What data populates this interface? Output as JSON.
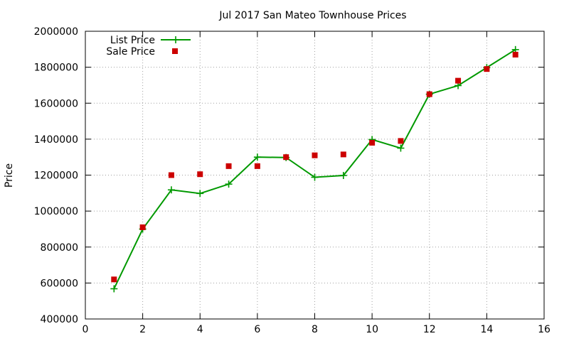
{
  "chart_data": {
    "type": "line",
    "title": "Jul 2017 San Mateo Townhouse Prices",
    "xlabel": "",
    "ylabel": "Price",
    "xlim": [
      0,
      16
    ],
    "ylim": [
      400000,
      2000000
    ],
    "x_ticks": [
      "0",
      "2",
      "4",
      "6",
      "8",
      "10",
      "12",
      "14",
      "16"
    ],
    "y_ticks": [
      "400000",
      "600000",
      "800000",
      "1000000",
      "1200000",
      "1400000",
      "1600000",
      "1800000",
      "2000000"
    ],
    "grid": true,
    "legend_position": "top-left",
    "series": [
      {
        "name": "List Price",
        "type": "line",
        "color": "#009900",
        "marker": "plus",
        "x": [
          1,
          2,
          3,
          4,
          5,
          6,
          7,
          8,
          9,
          10,
          11,
          12,
          13,
          14,
          15
        ],
        "values": [
          568000,
          900000,
          1118000,
          1098000,
          1150000,
          1300000,
          1298000,
          1188000,
          1198000,
          1398000,
          1350000,
          1650000,
          1698000,
          1798000,
          1898000
        ]
      },
      {
        "name": "Sale Price",
        "type": "scatter",
        "color": "#cc0000",
        "marker": "square",
        "x": [
          1,
          2,
          3,
          4,
          5,
          6,
          7,
          8,
          9,
          10,
          11,
          12,
          13,
          14,
          15
        ],
        "values": [
          620000,
          910000,
          1200000,
          1205000,
          1250000,
          1250000,
          1300000,
          1310000,
          1315000,
          1380000,
          1390000,
          1650000,
          1725000,
          1790000,
          1870000
        ]
      }
    ]
  }
}
